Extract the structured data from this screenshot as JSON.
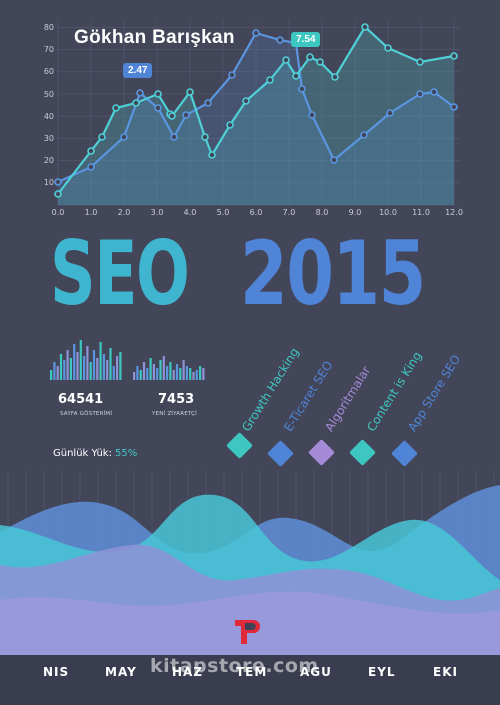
{
  "cover": {
    "author": "Gökhan Barışkan",
    "title_main": "SEO",
    "title_year": "2015"
  },
  "line_chart": {
    "y_ticks": [
      "80",
      "70",
      "60",
      "50",
      "40",
      "30",
      "20",
      "10"
    ],
    "x_ticks": [
      "0.0",
      "1.0",
      "2.0",
      "3.0",
      "4.0",
      "5.0",
      "6.0",
      "7.0",
      "8.0",
      "9.0",
      "10.0",
      "11.0",
      "12.0"
    ],
    "callouts": [
      "2.47",
      "7.54"
    ],
    "colors": {
      "teal": "#4fd0d6",
      "blue": "#5a95e0",
      "grid": "#6b6f85"
    }
  },
  "stats": [
    {
      "value": "64541",
      "label": "SAYFA GÖSTERİMİ"
    },
    {
      "value": "7453",
      "label": "YENİ ZİYARETÇİ"
    }
  ],
  "daily_load": {
    "label": "Günlük Yük:",
    "value": "55%"
  },
  "tags": [
    {
      "label": "Growth Hacking",
      "color": "#3ec7c0"
    },
    {
      "label": "E-Ticaret SEO",
      "color": "#4f84d6"
    },
    {
      "label": "Algoritmalar",
      "color": "#a58ad8"
    },
    {
      "label": "Content is King",
      "color": "#3ec7c0"
    },
    {
      "label": "App Store SEO",
      "color": "#4f84d6"
    }
  ],
  "months": [
    "NIS",
    "MAY",
    "HAZ",
    "TEM",
    "AGU",
    "EYL",
    "EKI"
  ],
  "watermark": "kitapstore.com",
  "publisher_logo": "publisher-logo"
}
